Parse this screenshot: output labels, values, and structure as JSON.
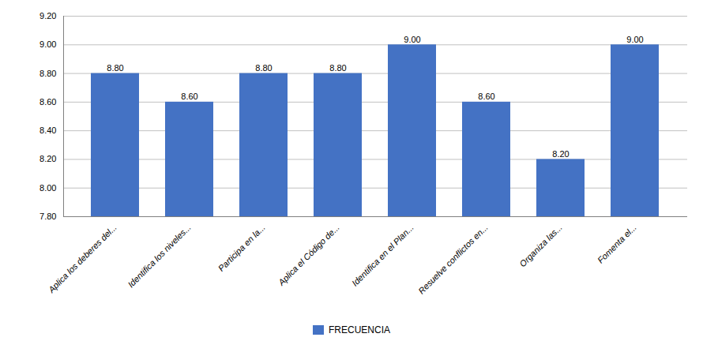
{
  "chart_data": {
    "type": "bar",
    "categories": [
      "Aplica los deberes del...",
      "Identifica los niveles...",
      "Participa en la...",
      "Aplica el Código de...",
      "Identifica en el Plan...",
      "Resuelve conflictos en...",
      "Organiza las...",
      "Fomenta el..."
    ],
    "series": [
      {
        "name": "FRECUENCIA",
        "color": "#4472C4",
        "values": [
          8.8,
          8.6,
          8.8,
          8.8,
          9.0,
          8.6,
          8.2,
          9.0
        ],
        "value_labels": [
          "8.80",
          "8.60",
          "8.80",
          "8.80",
          "9.00",
          "8.60",
          "8.20",
          "9.00"
        ]
      }
    ],
    "ylim": [
      7.8,
      9.2
    ],
    "yticks": [
      {
        "value": 7.8,
        "label": "7.80"
      },
      {
        "value": 8.0,
        "label": "8.00"
      },
      {
        "value": 8.2,
        "label": "8.20"
      },
      {
        "value": 8.4,
        "label": "8.40"
      },
      {
        "value": 8.6,
        "label": "8.60"
      },
      {
        "value": 8.8,
        "label": "8.80"
      },
      {
        "value": 9.0,
        "label": "9.00"
      },
      {
        "value": 9.2,
        "label": "9.20"
      }
    ],
    "grid": true,
    "data_labels": true,
    "legend": "bottom"
  }
}
